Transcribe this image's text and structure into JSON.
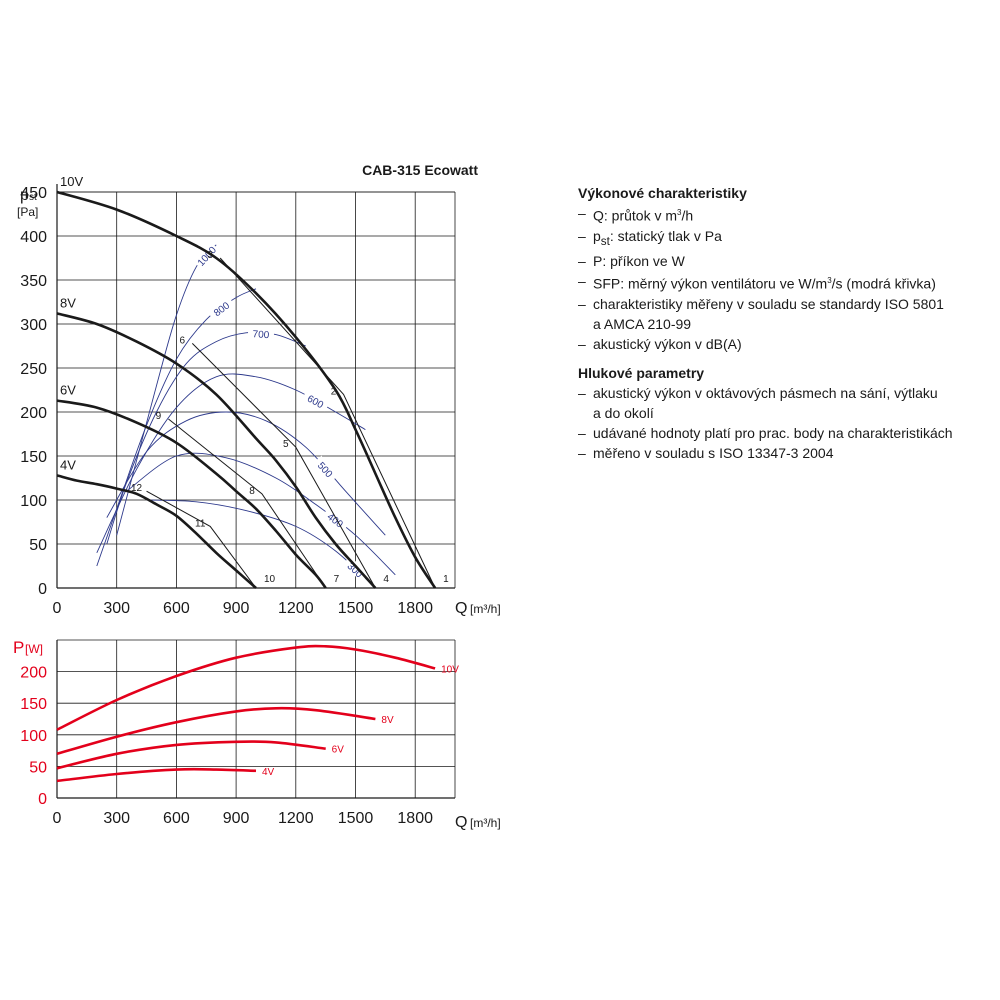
{
  "title": "CAB-315 Ecowatt",
  "colors": {
    "pressure": "#1a1a1a",
    "sfp": "#2e3a8c",
    "power": "#e3001b",
    "grid": "#1a1a1a"
  },
  "pressure_chart": {
    "y_label_main": "p",
    "y_label_sub": "st",
    "y_unit": "[Pa]",
    "x_label": "Q",
    "x_unit": "[m³/h]",
    "x_ticks": [
      "0",
      "300",
      "600",
      "900",
      "1200",
      "1500",
      "1800"
    ],
    "y_ticks": [
      "0",
      "50",
      "100",
      "150",
      "200",
      "250",
      "300",
      "350",
      "400",
      "450"
    ]
  },
  "power_chart": {
    "y_label_main": "P",
    "y_unit": "[W]",
    "x_label": "Q",
    "x_unit": "[m³/h]",
    "x_ticks": [
      "0",
      "300",
      "600",
      "900",
      "1200",
      "1500",
      "1800"
    ],
    "y_ticks": [
      "0",
      "50",
      "100",
      "150",
      "200"
    ]
  },
  "info": {
    "perf_title": "Výkonové charakteristiky",
    "perf_items": [
      {
        "pre": "Q: průtok v m",
        "sup": "3",
        "post": "/h"
      },
      {
        "pre": "p",
        "sub": "st",
        "post": ": statický tlak v Pa"
      },
      {
        "pre": "P: příkon ve W"
      },
      {
        "pre": "SFP: měrný výkon ventilátoru ve W/m",
        "sup": "3",
        "post": "/s (modrá křivka)"
      },
      {
        "pre": "charakteristiky měřeny v souladu se standardy ISO 5801",
        "line2": "a AMCA 210-99"
      },
      {
        "pre": "akustický výkon v dB(A)"
      }
    ],
    "noise_title": "Hlukové parametry",
    "noise_items": [
      {
        "pre": "akustický výkon v oktávových pásmech na sání, výtlaku",
        "line2": "a do okolí"
      },
      {
        "pre": "udávané hodnoty platí pro prac. body na charakteristikách"
      },
      {
        "pre": "měřeno v souladu s ISO 13347-3 2004"
      }
    ]
  },
  "chart_data": [
    {
      "type": "line",
      "title": "CAB-315 Ecowatt",
      "xlabel": "Q [m³/h]",
      "ylabel": "pst [Pa]",
      "xlim": [
        0,
        2000
      ],
      "ylim": [
        0,
        450
      ],
      "grid": true,
      "series": [
        {
          "name": "10V",
          "x": [
            0,
            300,
            600,
            800,
            1000,
            1200,
            1400,
            1500,
            1600,
            1700,
            1800,
            1900
          ],
          "y": [
            450,
            430,
            400,
            375,
            335,
            285,
            225,
            180,
            130,
            80,
            35,
            0
          ]
        },
        {
          "name": "8V",
          "x": [
            0,
            200,
            400,
            600,
            800,
            1000,
            1100,
            1200,
            1300,
            1400,
            1500,
            1600
          ],
          "y": [
            312,
            300,
            280,
            255,
            220,
            170,
            145,
            115,
            80,
            50,
            25,
            0
          ]
        },
        {
          "name": "6V",
          "x": [
            0,
            200,
            400,
            600,
            800,
            900,
            1000,
            1100,
            1200,
            1300,
            1350
          ],
          "y": [
            213,
            205,
            188,
            165,
            130,
            110,
            90,
            65,
            38,
            15,
            0
          ]
        },
        {
          "name": "4V",
          "x": [
            0,
            100,
            200,
            300,
            400,
            500,
            600,
            700,
            800,
            900,
            1000
          ],
          "y": [
            128,
            122,
            118,
            113,
            107,
            95,
            82,
            62,
            40,
            20,
            0
          ]
        }
      ],
      "sfp_curves": [
        {
          "label": "1000",
          "x": [
            300,
            400,
            500,
            600,
            700,
            800
          ],
          "y": [
            60,
            145,
            230,
            310,
            365,
            390
          ]
        },
        {
          "label": "800",
          "x": [
            200,
            300,
            450,
            600,
            750,
            900,
            1000
          ],
          "y": [
            25,
            90,
            185,
            260,
            305,
            330,
            340
          ]
        },
        {
          "label": "700",
          "x": [
            250,
            350,
            500,
            650,
            800,
            950,
            1100,
            1250
          ],
          "y": [
            50,
            120,
            200,
            255,
            280,
            290,
            288,
            275
          ]
        },
        {
          "label": "600",
          "x": [
            200,
            400,
            600,
            800,
            1000,
            1200,
            1400,
            1550
          ],
          "y": [
            40,
            135,
            205,
            240,
            240,
            225,
            200,
            180
          ]
        },
        {
          "label": "500",
          "x": [
            250,
            450,
            650,
            850,
            1050,
            1250,
            1450,
            1650
          ],
          "y": [
            80,
            155,
            190,
            200,
            190,
            160,
            110,
            60
          ]
        },
        {
          "label": "400",
          "x": [
            350,
            600,
            850,
            1100,
            1300,
            1500,
            1700
          ],
          "y": [
            110,
            150,
            148,
            125,
            95,
            60,
            15
          ]
        },
        {
          "label": "300",
          "x": [
            450,
            700,
            950,
            1200,
            1400,
            1600
          ],
          "y": [
            100,
            98,
            88,
            70,
            42,
            0
          ]
        }
      ],
      "operating_points": [
        {
          "label": "1",
          "x": 1900,
          "y": 0
        },
        {
          "label": "2",
          "x": 1440,
          "y": 220
        },
        {
          "label": "3",
          "x": 820,
          "y": 375
        },
        {
          "label": "4",
          "x": 1600,
          "y": 0
        },
        {
          "label": "5",
          "x": 1200,
          "y": 160
        },
        {
          "label": "6",
          "x": 680,
          "y": 278
        },
        {
          "label": "7",
          "x": 1350,
          "y": 0
        },
        {
          "label": "8",
          "x": 1030,
          "y": 107
        },
        {
          "label": "9",
          "x": 560,
          "y": 192
        },
        {
          "label": "10",
          "x": 1000,
          "y": 0
        },
        {
          "label": "11",
          "x": 770,
          "y": 70
        },
        {
          "label": "12",
          "x": 450,
          "y": 110
        }
      ]
    },
    {
      "type": "line",
      "xlabel": "Q [m³/h]",
      "ylabel": "P [W]",
      "xlim": [
        0,
        2000
      ],
      "ylim": [
        0,
        250
      ],
      "grid": true,
      "series": [
        {
          "name": "10V",
          "x": [
            0,
            300,
            600,
            900,
            1200,
            1350,
            1500,
            1700,
            1900
          ],
          "y": [
            108,
            155,
            193,
            222,
            238,
            240,
            235,
            222,
            205
          ]
        },
        {
          "name": "8V",
          "x": [
            0,
            300,
            600,
            900,
            1100,
            1300,
            1600
          ],
          "y": [
            70,
            97,
            120,
            137,
            142,
            139,
            125
          ]
        },
        {
          "name": "6V",
          "x": [
            0,
            300,
            600,
            900,
            1100,
            1350
          ],
          "y": [
            47,
            70,
            84,
            89,
            88,
            78
          ]
        },
        {
          "name": "4V",
          "x": [
            0,
            300,
            600,
            800,
            1000
          ],
          "y": [
            27,
            38,
            45,
            45,
            43
          ]
        }
      ]
    }
  ]
}
